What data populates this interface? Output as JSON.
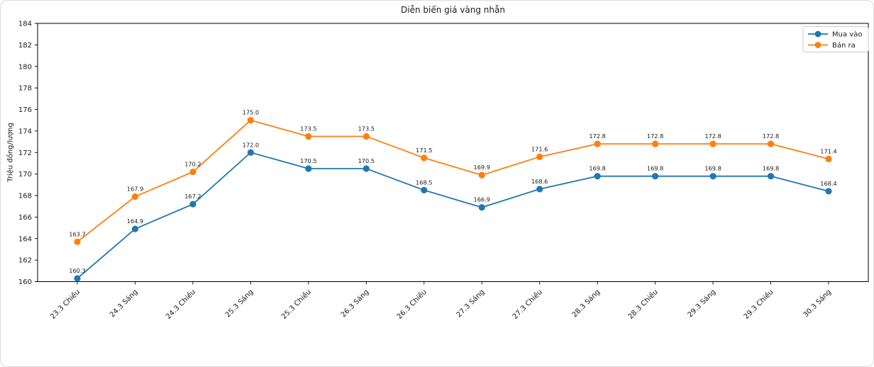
{
  "chart_data": {
    "type": "line",
    "title": "Diễn biến giá vàng nhẫn",
    "xlabel": "",
    "ylabel": "Triệu đồng/lượng",
    "categories": [
      "23.3 Chiều",
      "24.3 Sáng",
      "24.3 Chiều",
      "25.3 Sáng",
      "25.3 Chiều",
      "26.3 Sáng",
      "26.3 Chiều",
      "27.3 Sáng",
      "27.3 Chiều",
      "28.3 Sáng",
      "28.3 Chiều",
      "29.3 Sáng",
      "29.3 Chiều",
      "30.3 Sáng"
    ],
    "series": [
      {
        "name": "Mua vào",
        "color": "#1f77b4",
        "values": [
          160.3,
          164.9,
          167.2,
          172.0,
          170.5,
          170.5,
          168.5,
          166.9,
          168.6,
          169.8,
          169.8,
          169.8,
          169.8,
          168.4
        ]
      },
      {
        "name": "Bán ra",
        "color": "#ff7f0e",
        "values": [
          163.7,
          167.9,
          170.2,
          175.0,
          173.5,
          173.5,
          171.5,
          169.9,
          171.6,
          172.8,
          172.8,
          172.8,
          172.8,
          171.4
        ]
      }
    ],
    "ylim": [
      160,
      184
    ],
    "yticks": [
      160,
      162,
      164,
      166,
      168,
      170,
      172,
      174,
      176,
      178,
      180,
      182,
      184
    ],
    "x_tick_rotation": 45,
    "grid": false,
    "data_labels": true,
    "legend_position": "upper right",
    "label_format_decimals": 1
  }
}
